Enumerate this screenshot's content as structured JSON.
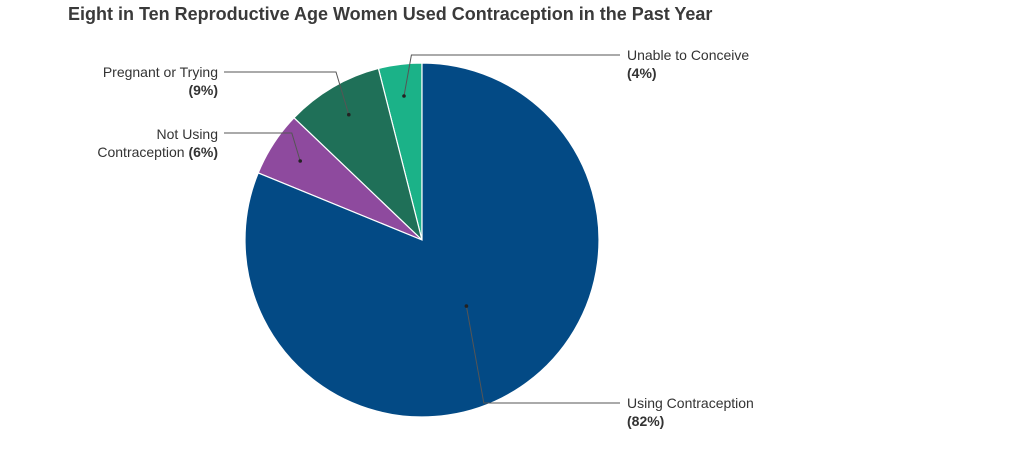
{
  "chart_data": {
    "type": "pie",
    "title": "Eight in Ten Reproductive Age Women Used Contraception in the Past Year",
    "slices": [
      {
        "label": "Unable to Conceive",
        "value": 4,
        "value_label": "(4%)",
        "color": "#1bb288"
      },
      {
        "label": "Pregnant or Trying",
        "value": 9,
        "value_label": "(9%)",
        "color": "#1f7058"
      },
      {
        "label": "Not Using Contraception",
        "value": 6,
        "value_label": "(6%)",
        "color": "#8e4a9e"
      },
      {
        "label": "Using Contraception",
        "value": 82,
        "value_label": "(82%)",
        "color": "#034a85"
      }
    ],
    "direction": "counterclockwise",
    "start": "12 o'clock"
  }
}
